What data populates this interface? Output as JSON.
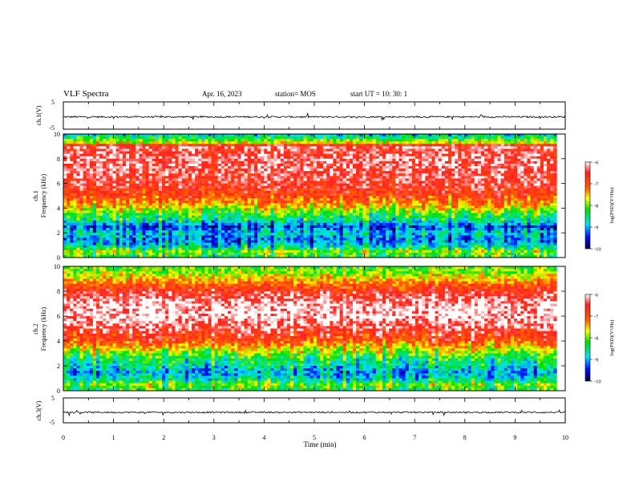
{
  "header": {
    "title": "VLF Spectra",
    "date": "Apr. 16, 2023",
    "station": "station= MOS",
    "start_ut": "start  UT =   10: 30: 1"
  },
  "chart_data": [
    {
      "type": "line",
      "panel": "ch1-waveform",
      "ylabel": "ch.1(V)",
      "yticks": [
        "5",
        "-5"
      ],
      "ylim": [
        -5,
        5
      ],
      "approx_level": -0.5,
      "xlim": [
        0,
        10
      ]
    },
    {
      "type": "heatmap",
      "panel": "ch1-spectrogram",
      "ylabel_line1": "ch.1",
      "ylabel_line2": "Frequency (kHz)",
      "ylim": [
        0,
        10
      ],
      "yticks": [
        "0",
        "2",
        "4",
        "6",
        "8",
        "10"
      ],
      "xlim": [
        0,
        9.83
      ],
      "colorbar": {
        "label": "log(PSD)(V²/Hz)",
        "range": [
          -10,
          -6
        ],
        "ticks": [
          "-6",
          "-7",
          "-8",
          "-9",
          "-10"
        ]
      },
      "band_levels_by_freq_khz": [
        {
          "f": 0.0,
          "v": -8.3
        },
        {
          "f": 0.5,
          "v": -8.0
        },
        {
          "f": 1.0,
          "v": -8.9
        },
        {
          "f": 1.5,
          "v": -9.2
        },
        {
          "f": 2.0,
          "v": -8.8
        },
        {
          "f": 2.5,
          "v": -9.4
        },
        {
          "f": 3.0,
          "v": -8.6
        },
        {
          "f": 3.5,
          "v": -8.3
        },
        {
          "f": 4.0,
          "v": -7.7
        },
        {
          "f": 4.5,
          "v": -7.2
        },
        {
          "f": 5.0,
          "v": -6.9
        },
        {
          "f": 6.0,
          "v": -6.5
        },
        {
          "f": 7.0,
          "v": -6.4
        },
        {
          "f": 8.0,
          "v": -6.3
        },
        {
          "f": 8.7,
          "v": -6.5
        },
        {
          "f": 9.0,
          "v": -6.2
        },
        {
          "f": 9.3,
          "v": -7.7
        },
        {
          "f": 9.7,
          "v": -8.4
        },
        {
          "f": 10.0,
          "v": -9.0
        }
      ]
    },
    {
      "type": "heatmap",
      "panel": "ch2-spectrogram",
      "ylabel_line1": "ch.2",
      "ylabel_line2": "Frequency (kHz)",
      "ylim": [
        0,
        10
      ],
      "yticks": [
        "0",
        "2",
        "4",
        "6",
        "8",
        "10"
      ],
      "xlim": [
        0,
        9.83
      ],
      "colorbar": {
        "label": "log(PSD)(V²/Hz)",
        "range": [
          -10,
          -6
        ],
        "ticks": [
          "-6",
          "-7",
          "-8",
          "-9",
          "-10"
        ]
      },
      "band_levels_by_freq_khz": [
        {
          "f": 0.0,
          "v": -8.3
        },
        {
          "f": 0.5,
          "v": -8.0
        },
        {
          "f": 1.0,
          "v": -8.7
        },
        {
          "f": 1.5,
          "v": -9.0
        },
        {
          "f": 2.0,
          "v": -8.6
        },
        {
          "f": 2.5,
          "v": -8.4
        },
        {
          "f": 3.0,
          "v": -8.0
        },
        {
          "f": 3.5,
          "v": -7.5
        },
        {
          "f": 4.0,
          "v": -6.9
        },
        {
          "f": 5.0,
          "v": -6.4
        },
        {
          "f": 6.0,
          "v": -6.0
        },
        {
          "f": 7.0,
          "v": -6.1
        },
        {
          "f": 8.0,
          "v": -6.6
        },
        {
          "f": 8.5,
          "v": -7.0
        },
        {
          "f": 9.0,
          "v": -7.5
        },
        {
          "f": 9.5,
          "v": -7.9
        },
        {
          "f": 10.0,
          "v": -8.1
        }
      ]
    },
    {
      "type": "line",
      "panel": "ch3-waveform",
      "ylabel": "ch.3(V)",
      "yticks": [
        "5",
        "-5"
      ],
      "ylim": [
        -5,
        5
      ],
      "approx_level": -0.8,
      "xlabel": "Time  (min)",
      "xticks": [
        "0",
        "1",
        "2",
        "3",
        "4",
        "5",
        "6",
        "7",
        "8",
        "9",
        "10"
      ],
      "xlim": [
        0,
        10
      ]
    }
  ]
}
